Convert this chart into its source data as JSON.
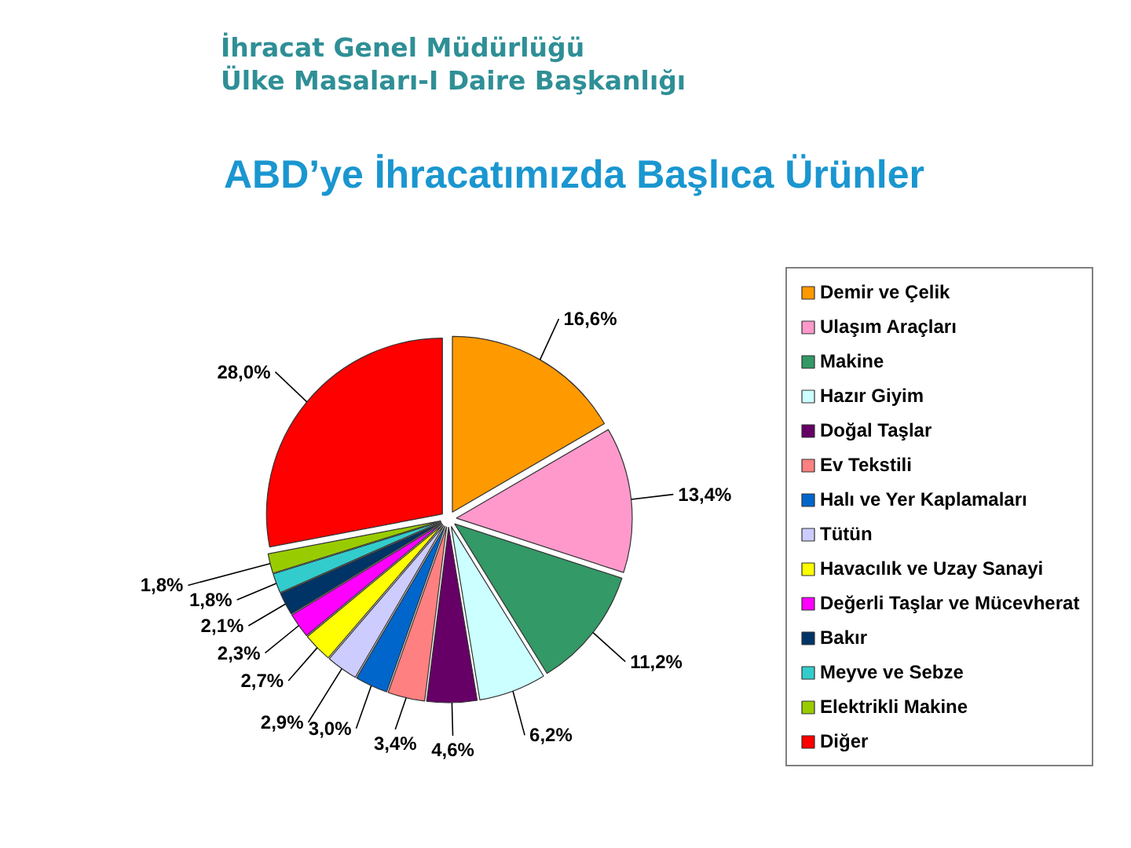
{
  "chart_data": {
    "type": "pie",
    "title": "ABD’ye İhracatımızda Başlıca Ürünler",
    "annotations": [
      "İhracat Genel Müdürlüğü",
      "Ülke Masaları-I Daire Başkanlığı"
    ],
    "categories": [
      "Demir ve Çelik",
      "Ulaşım Araçları",
      "Makine",
      "Hazır Giyim",
      "Doğal Taşlar",
      "Ev Tekstili",
      "Halı ve Yer Kaplamaları",
      "Tütün",
      "Havacılık ve Uzay Sanayi",
      "Değerli Taşlar ve Mücevherat",
      "Bakır",
      "Meyve ve Sebze",
      "Elektrikli Makine",
      "Diğer"
    ],
    "values": [
      16.6,
      13.4,
      11.2,
      6.2,
      4.6,
      3.4,
      3.0,
      2.9,
      2.7,
      2.3,
      2.1,
      1.8,
      1.8,
      28.0
    ],
    "colors": [
      "#ff9900",
      "#ff99cc",
      "#339966",
      "#ccffff",
      "#660066",
      "#ff8080",
      "#0066cc",
      "#ccccff",
      "#ffff00",
      "#ff00ff",
      "#003366",
      "#33cccc",
      "#99cc00",
      "#ff0000"
    ],
    "value_labels": [
      "16,6%",
      "13,4%",
      "11,2%",
      "6,2%",
      "4,6%",
      "3,4%",
      "3,0%",
      "2,9%",
      "2,7%",
      "2,3%",
      "2,1%",
      "1,8%",
      "1,8%",
      "28,0%"
    ],
    "legend": "right"
  }
}
